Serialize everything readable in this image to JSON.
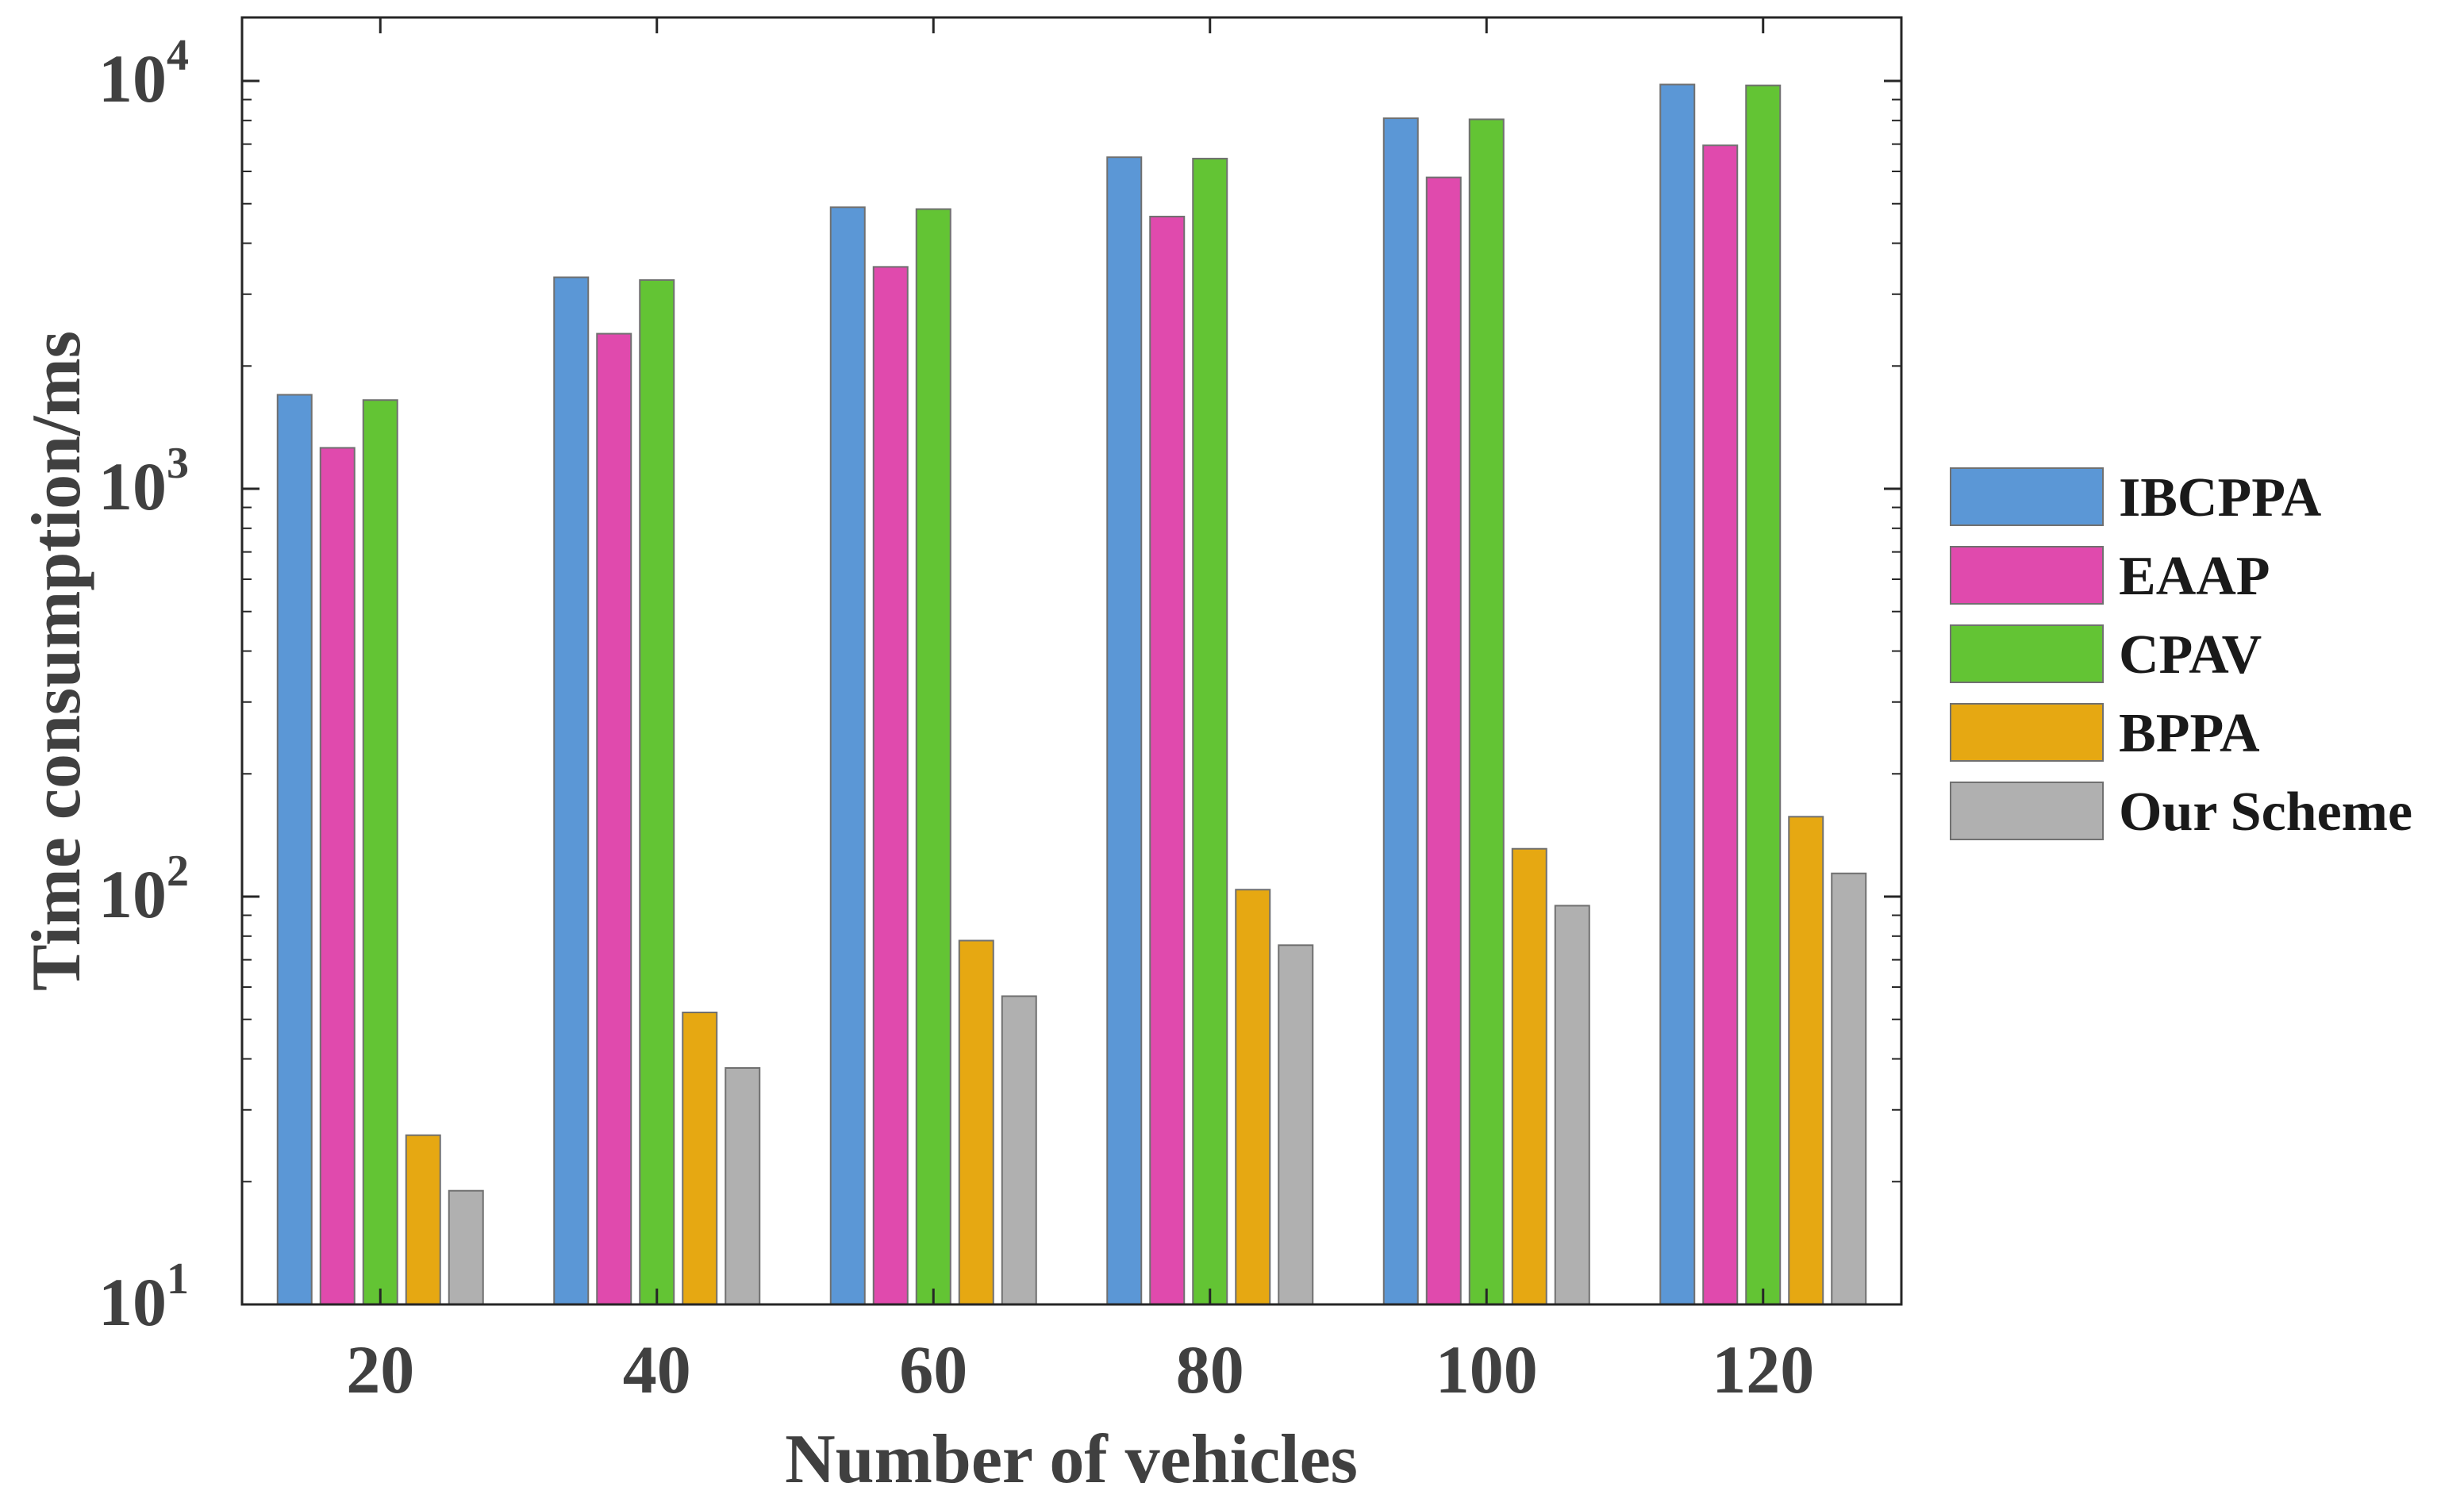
{
  "chart_data": {
    "type": "bar",
    "yscale": "log",
    "title": "",
    "xlabel": "Number of vehicles",
    "ylabel": "Time consumption/ms",
    "ylim": [
      10,
      14000
    ],
    "categories": [
      "20",
      "40",
      "60",
      "80",
      "100",
      "120"
    ],
    "yticks": [
      {
        "base": "10",
        "exp": "1",
        "value": 10
      },
      {
        "base": "10",
        "exp": "2",
        "value": 100
      },
      {
        "base": "10",
        "exp": "3",
        "value": 1000
      },
      {
        "base": "10",
        "exp": "4",
        "value": 10000
      }
    ],
    "legend_position": "outside-right",
    "grid": false,
    "series": [
      {
        "name": "IBCPPA",
        "color": "#5b97d6",
        "values": [
          1700,
          3300,
          4900,
          6500,
          8100,
          9800
        ]
      },
      {
        "name": "EAAP",
        "color": "#e04aad",
        "values": [
          1260,
          2400,
          3500,
          4650,
          5800,
          6950
        ]
      },
      {
        "name": "CPAV",
        "color": "#63c434",
        "values": [
          1650,
          3250,
          4850,
          6450,
          8050,
          9750
        ]
      },
      {
        "name": "BPPA",
        "color": "#e6a812",
        "values": [
          26,
          52,
          78,
          104,
          131,
          157
        ]
      },
      {
        "name": "Our Scheme",
        "color": "#b0b0b0",
        "values": [
          19,
          38,
          57,
          76,
          95,
          114
        ]
      }
    ]
  }
}
